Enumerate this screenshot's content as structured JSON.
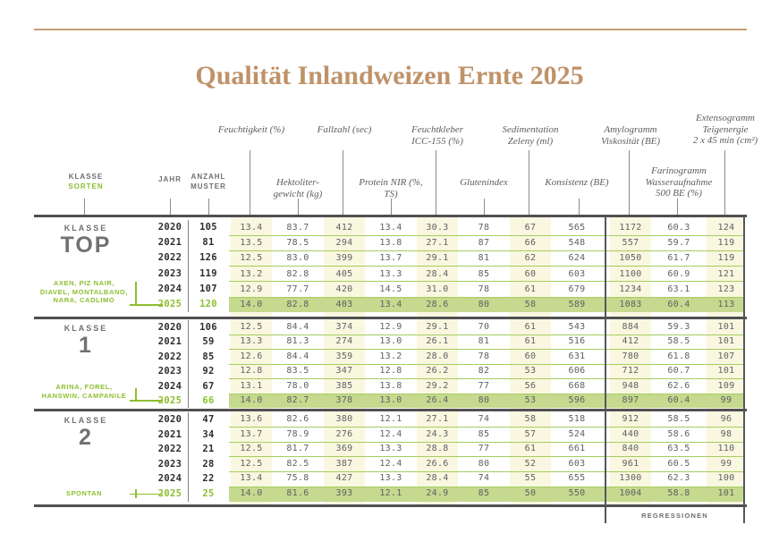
{
  "title": "Qualität Inlandweizen Ernte 2025",
  "left_header": {
    "klasse": "KLASSE",
    "sorten": "SORTEN",
    "jahr": "JAHR",
    "anzahl_muster": "ANZAHL\nMUSTER"
  },
  "columns": [
    {
      "label": "Feuchtigkeit (%)"
    },
    {
      "label": "Hektoliter-\ngewicht (kg)"
    },
    {
      "label": "Fallzahl (sec)"
    },
    {
      "label": "Protein NIR (%,\nTS)"
    },
    {
      "label": "Feuchtkleber\nICC-155 (%)"
    },
    {
      "label": "Glutenindex"
    },
    {
      "label": "Sedimentation\nZeleny (ml)"
    },
    {
      "label": "Konsistenz (BE)"
    },
    {
      "label": "Amylogramm\nViskosität (BE)"
    },
    {
      "label": "Farinogramm\nWasseraufnahme\n500 BE (%)"
    },
    {
      "label": "Extensogramm\nTeigenergie\n2 x 45 min (cm²)"
    }
  ],
  "sections": [
    {
      "class_label": "KLASSE",
      "class_name": "TOP",
      "sorten": "AXEN, PIZ NAIR,\nDIAVEL, MONTALBANO,\nNARA, CADLIMO",
      "rows": [
        {
          "year": "2020",
          "n": "105",
          "values": [
            "13.4",
            "83.7",
            "412",
            "13.4",
            "30.3",
            "78",
            "67",
            "565",
            "1172",
            "60.3",
            "124"
          ]
        },
        {
          "year": "2021",
          "n": "81",
          "values": [
            "13.5",
            "78.5",
            "294",
            "13.8",
            "27.1",
            "87",
            "66",
            "548",
            "557",
            "59.7",
            "119"
          ]
        },
        {
          "year": "2022",
          "n": "126",
          "values": [
            "12.5",
            "83.0",
            "399",
            "13.7",
            "29.1",
            "81",
            "62",
            "624",
            "1050",
            "61.7",
            "119"
          ]
        },
        {
          "year": "2023",
          "n": "119",
          "values": [
            "13.2",
            "82.8",
            "405",
            "13.3",
            "28.4",
            "85",
            "60",
            "603",
            "1100",
            "60.9",
            "121"
          ]
        },
        {
          "year": "2024",
          "n": "107",
          "values": [
            "12.9",
            "77.7",
            "420",
            "14.5",
            "31.0",
            "78",
            "61",
            "679",
            "1234",
            "63.1",
            "123"
          ]
        },
        {
          "year": "2025",
          "n": "120",
          "values": [
            "14.0",
            "82.8",
            "403",
            "13.4",
            "28.6",
            "80",
            "58",
            "589",
            "1083",
            "60.4",
            "113"
          ],
          "highlight": true
        }
      ]
    },
    {
      "class_label": "KLASSE",
      "class_name": "1",
      "sorten": "ARINA, FOREL,\nHANSWIN, CAMPANILE",
      "rows": [
        {
          "year": "2020",
          "n": "106",
          "values": [
            "12.5",
            "84.4",
            "374",
            "12.9",
            "29.1",
            "70",
            "61",
            "543",
            "884",
            "59.3",
            "101"
          ]
        },
        {
          "year": "2021",
          "n": "59",
          "values": [
            "13.3",
            "81.3",
            "274",
            "13.0",
            "26.1",
            "81",
            "61",
            "516",
            "412",
            "58.5",
            "101"
          ]
        },
        {
          "year": "2022",
          "n": "85",
          "values": [
            "12.6",
            "84.4",
            "359",
            "13.2",
            "28.0",
            "78",
            "60",
            "631",
            "780",
            "61.8",
            "107"
          ]
        },
        {
          "year": "2023",
          "n": "92",
          "values": [
            "12.8",
            "83.5",
            "347",
            "12.8",
            "26.2",
            "82",
            "53",
            "606",
            "712",
            "60.7",
            "101"
          ]
        },
        {
          "year": "2024",
          "n": "67",
          "values": [
            "13.1",
            "78.0",
            "385",
            "13.8",
            "29.2",
            "77",
            "56",
            "668",
            "948",
            "62.6",
            "109"
          ]
        },
        {
          "year": "2025",
          "n": "66",
          "values": [
            "14.0",
            "82.7",
            "378",
            "13.0",
            "26.4",
            "80",
            "53",
            "596",
            "897",
            "60.4",
            "99"
          ],
          "highlight": true
        }
      ]
    },
    {
      "class_label": "KLASSE",
      "class_name": "2",
      "sorten": "SPONTAN",
      "rows": [
        {
          "year": "2020",
          "n": "47",
          "values": [
            "13.6",
            "82.6",
            "380",
            "12.1",
            "27.1",
            "74",
            "58",
            "518",
            "912",
            "58.5",
            "96"
          ]
        },
        {
          "year": "2021",
          "n": "34",
          "values": [
            "13.7",
            "78.9",
            "276",
            "12.4",
            "24.3",
            "85",
            "57",
            "524",
            "440",
            "58.6",
            "98"
          ]
        },
        {
          "year": "2022",
          "n": "21",
          "values": [
            "12.5",
            "81.7",
            "369",
            "13.3",
            "28.8",
            "77",
            "61",
            "661",
            "840",
            "63.5",
            "110"
          ]
        },
        {
          "year": "2023",
          "n": "28",
          "values": [
            "12.5",
            "82.5",
            "387",
            "12.4",
            "26.6",
            "80",
            "52",
            "603",
            "961",
            "60.5",
            "99"
          ]
        },
        {
          "year": "2024",
          "n": "22",
          "values": [
            "13.4",
            "75.8",
            "427",
            "13.3",
            "28.4",
            "74",
            "55",
            "655",
            "1300",
            "62.3",
            "100"
          ]
        },
        {
          "year": "2025",
          "n": "25",
          "values": [
            "14.0",
            "81.6",
            "393",
            "12.1",
            "24.9",
            "85",
            "50",
            "550",
            "1004",
            "58.8",
            "101"
          ],
          "highlight": true
        }
      ]
    }
  ],
  "regression_label": "REGRESSIONEN",
  "colors": {
    "accent_tan": "#bf9268",
    "accent_green": "#8ebe2e",
    "highlight_band": "#c5d98f",
    "stripe_cream": "#faf7e0",
    "rule_dark": "#4f5052"
  }
}
